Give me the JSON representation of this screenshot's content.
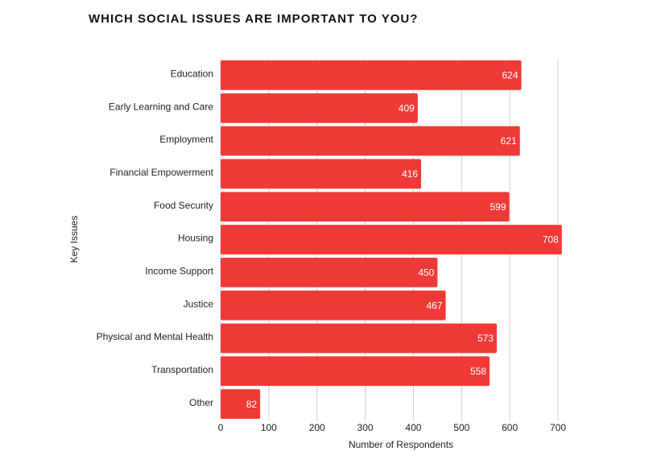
{
  "chart_data": {
    "type": "bar",
    "orientation": "horizontal",
    "title": "WHICH SOCIAL ISSUES ARE IMPORTANT TO YOU?",
    "x_label": "Number of Respondents",
    "y_label": "Key Issues",
    "categories": [
      "Education",
      "Early Learning and Care",
      "Employment",
      "Financial Empowerment",
      "Food Security",
      "Housing",
      "Income Support",
      "Justice",
      "Physical and Mental Health",
      "Transportation",
      "Other"
    ],
    "values": [
      624,
      409,
      621,
      416,
      599,
      708,
      450,
      467,
      573,
      558,
      82
    ],
    "color": "#ee3a37",
    "xlim": [
      0,
      700
    ],
    "xticks": [
      0,
      100,
      200,
      300,
      400,
      500,
      600,
      700
    ],
    "grid": true
  }
}
